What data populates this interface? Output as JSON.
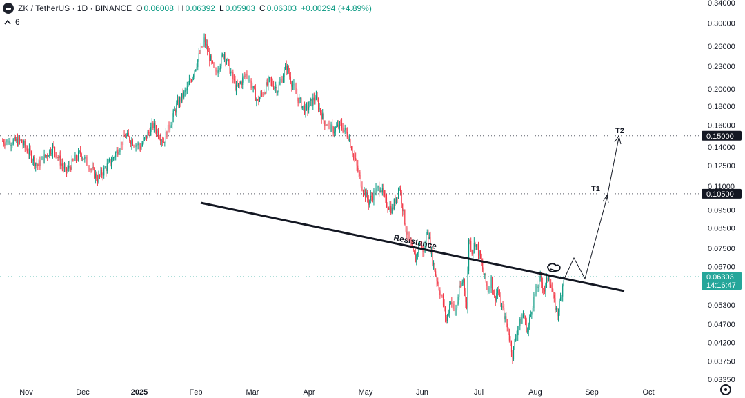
{
  "header": {
    "symbol": "ZK / TetherUS · 1D · BINANCE",
    "open_label": "O",
    "open": "0.06008",
    "high_label": "H",
    "high": "0.06392",
    "low_label": "L",
    "low": "0.05903",
    "close_label": "C",
    "close": "0.06303",
    "change": "+0.00294 (+4.89%)"
  },
  "indicators": {
    "collapse_icon": "chevron-up-icon",
    "count": "6"
  },
  "colors": {
    "up": "#089981",
    "down": "#f23645",
    "price_badge": "#26a69a",
    "level_badge": "#131722"
  },
  "chart_data": {
    "type": "candlestick",
    "y_scale": "log",
    "ylim": [
      0.0335,
      0.34
    ],
    "price_ticks": [
      "0.34000",
      "0.30000",
      "0.26000",
      "0.23000",
      "0.20000",
      "0.18000",
      "0.16000",
      "0.14000",
      "0.12500",
      "0.11000",
      "0.09500",
      "0.08500",
      "0.07500",
      "0.06700",
      "0.05300",
      "0.04700",
      "0.04200",
      "0.03750",
      "0.03350"
    ],
    "time_ticks": [
      "Nov",
      "Dec",
      "2025",
      "Feb",
      "Mar",
      "Apr",
      "May",
      "Jun",
      "Jul",
      "Aug",
      "Sep",
      "Oct"
    ],
    "levels": [
      {
        "value": 0.15,
        "label": "0.15000"
      },
      {
        "value": 0.105,
        "label": "0.10500"
      },
      {
        "value": 0.06303,
        "label": "0.06303"
      }
    ],
    "countdown": "14:16:47",
    "resistance_label": "Resistance",
    "targets": [
      {
        "label": "T1",
        "value": 0.105
      },
      {
        "label": "T2",
        "value": 0.15
      }
    ],
    "path": [
      [
        0.145,
        18
      ],
      [
        0.125,
        16
      ],
      [
        0.14,
        14
      ],
      [
        0.12,
        12
      ],
      [
        0.135,
        14
      ],
      [
        0.115,
        16
      ],
      [
        0.13,
        14
      ],
      [
        0.15,
        12
      ],
      [
        0.14,
        14
      ],
      [
        0.16,
        12
      ],
      [
        0.145,
        10
      ],
      [
        0.18,
        12
      ],
      [
        0.2,
        10
      ],
      [
        0.23,
        8
      ],
      [
        0.27,
        8
      ],
      [
        0.22,
        10
      ],
      [
        0.25,
        9
      ],
      [
        0.2,
        11
      ],
      [
        0.22,
        10
      ],
      [
        0.185,
        10
      ],
      [
        0.21,
        11
      ],
      [
        0.2,
        8
      ],
      [
        0.23,
        8
      ],
      [
        0.19,
        10
      ],
      [
        0.175,
        8
      ],
      [
        0.19,
        9
      ],
      [
        0.165,
        8
      ],
      [
        0.155,
        8
      ],
      [
        0.16,
        8
      ],
      [
        0.15,
        7
      ],
      [
        0.13,
        6
      ],
      [
        0.11,
        7
      ],
      [
        0.1,
        6
      ],
      [
        0.105,
        5
      ],
      [
        0.11,
        6
      ],
      [
        0.1,
        5
      ],
      [
        0.095,
        6
      ],
      [
        0.11,
        7
      ],
      [
        0.085,
        6
      ],
      [
        0.075,
        5
      ],
      [
        0.07,
        4
      ],
      [
        0.078,
        4
      ],
      [
        0.073,
        4
      ],
      [
        0.085,
        3
      ],
      [
        0.07,
        5
      ],
      [
        0.062,
        4
      ],
      [
        0.055,
        5
      ],
      [
        0.048,
        4
      ],
      [
        0.055,
        4
      ],
      [
        0.05,
        4
      ],
      [
        0.058,
        4
      ],
      [
        0.062,
        4
      ],
      [
        0.052,
        3
      ],
      [
        0.08,
        2
      ],
      [
        0.074,
        3
      ],
      [
        0.078,
        3
      ],
      [
        0.072,
        4
      ],
      [
        0.064,
        4
      ],
      [
        0.058,
        4
      ],
      [
        0.062,
        3
      ],
      [
        0.055,
        3
      ],
      [
        0.058,
        3
      ],
      [
        0.052,
        4
      ],
      [
        0.045,
        6
      ],
      [
        0.039,
        4
      ],
      [
        0.045,
        4
      ],
      [
        0.05,
        6
      ],
      [
        0.045,
        4
      ],
      [
        0.052,
        4
      ],
      [
        0.058,
        4
      ],
      [
        0.062,
        4
      ],
      [
        0.058,
        4
      ],
      [
        0.064,
        4
      ],
      [
        0.055,
        4
      ],
      [
        0.05,
        4
      ],
      [
        0.055,
        3
      ],
      [
        0.063,
        3
      ]
    ]
  }
}
